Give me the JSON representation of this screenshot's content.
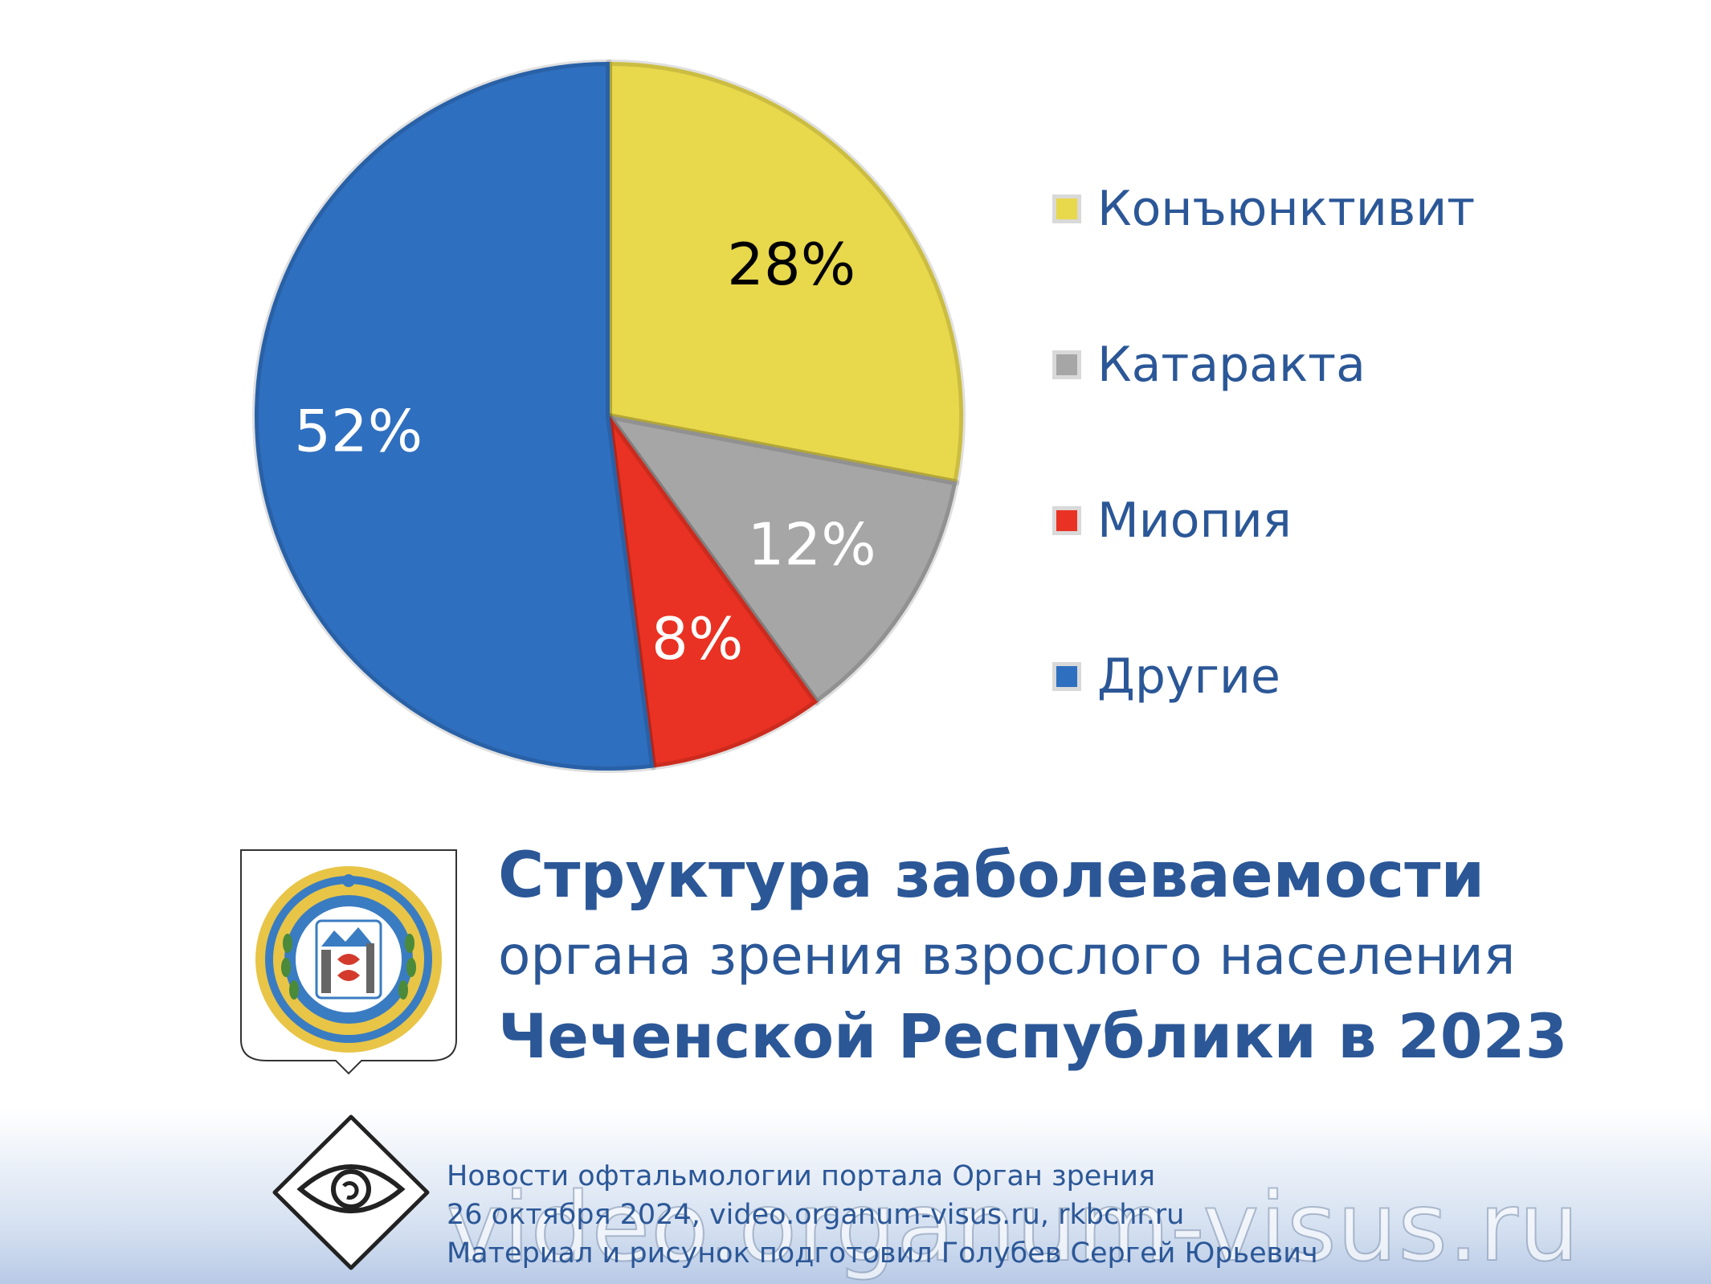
{
  "chart_data": {
    "type": "pie",
    "title": "",
    "slices": [
      {
        "label": "Конъюнктивит",
        "value": 28,
        "display": "28%",
        "color": "#e8d84b",
        "text_color": "#000000"
      },
      {
        "label": "Катаракта",
        "value": 12,
        "display": "12%",
        "color": "#a6a6a6",
        "text_color": "#ffffff"
      },
      {
        "label": "Миопия",
        "value": 8,
        "display": "8%",
        "color": "#e93223",
        "text_color": "#ffffff"
      },
      {
        "label": "Другие",
        "value": 52,
        "display": "52%",
        "color": "#2f6fbf",
        "text_color": "#ffffff"
      }
    ],
    "legend_position": "right",
    "start_angle": "12 o'clock, clockwise"
  },
  "caption": {
    "line1": "Структура заболеваемости",
    "line2": "органа зрения взрослого населения",
    "line3": "Чеченской Республики в 2023"
  },
  "credits": {
    "line1": "Новости офтальмологии портала Орган зрения",
    "line2": "26 октября 2024, video.organum-visus.ru, rkbchr.ru",
    "line3": "Материал и рисунок подготовил Голубев Сергей Юрьевич"
  },
  "watermark": "video.organum-visus.ru",
  "colors": {
    "title": "#2b5797",
    "emblem_ring": "#e8c547",
    "emblem_blue": "#3a7cc2"
  },
  "icons": {
    "emblem": "chechen-republic-coat-of-arms-icon",
    "logo": "eye-diamond-logo-icon"
  }
}
